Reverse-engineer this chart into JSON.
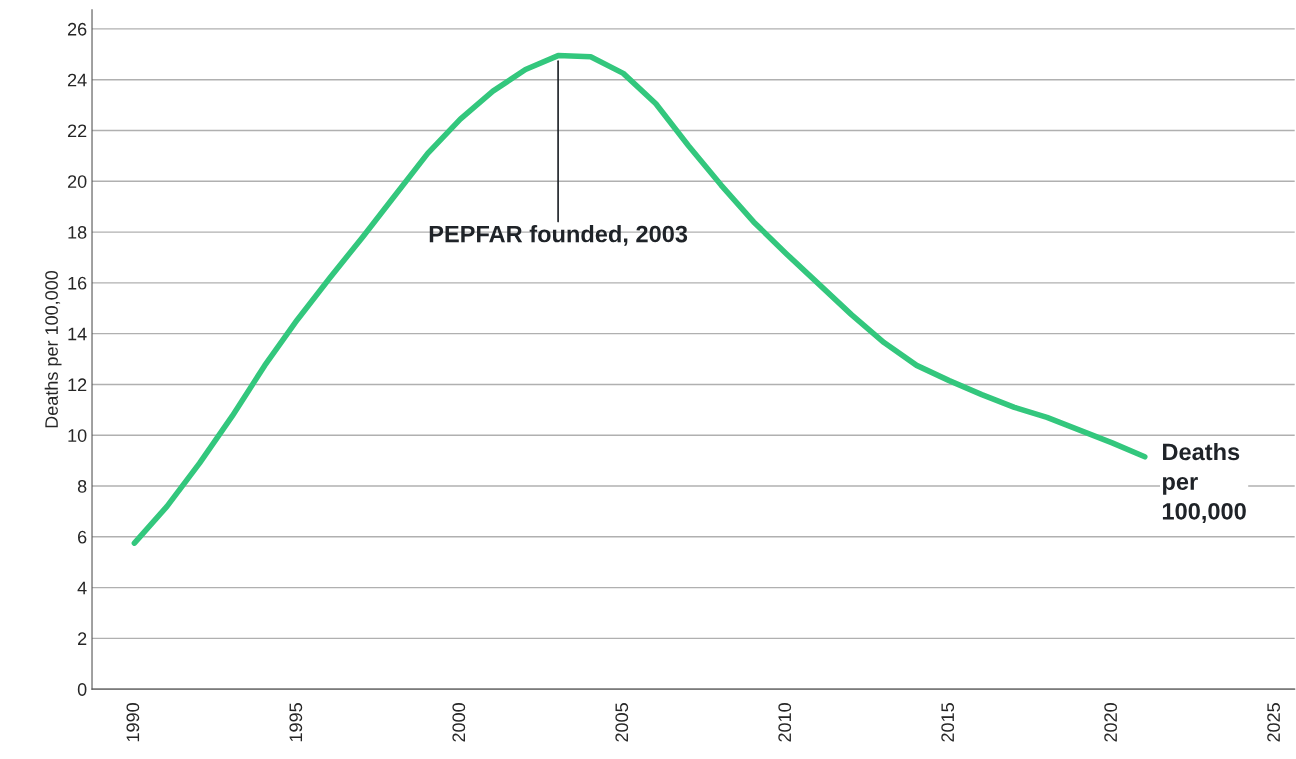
{
  "chart_data": {
    "type": "line",
    "ylabel": "Deaths per 100,000",
    "x": [
      1990,
      1991,
      1992,
      1993,
      1994,
      1995,
      1996,
      1997,
      1998,
      1999,
      2000,
      2001,
      2002,
      2003,
      2004,
      2005,
      2006,
      2007,
      2008,
      2009,
      2010,
      2011,
      2012,
      2013,
      2014,
      2015,
      2016,
      2017,
      2018,
      2019,
      2020,
      2021
    ],
    "series": [
      {
        "name": "Deaths\nper\n100,000",
        "color": "#33c77d",
        "values": [
          5.75,
          7.2,
          8.9,
          10.75,
          12.75,
          14.55,
          16.2,
          17.8,
          19.45,
          21.1,
          22.45,
          23.55,
          24.4,
          24.95,
          24.9,
          24.25,
          23.05,
          21.4,
          19.85,
          18.4,
          17.15,
          15.95,
          14.75,
          13.65,
          12.75,
          12.15,
          11.6,
          11.1,
          10.7,
          10.2,
          9.7,
          9.15
        ]
      }
    ],
    "annotations": [
      {
        "text": "PEPFAR founded, 2003",
        "x": 2003,
        "y": 24.95
      }
    ],
    "xlim": [
      1988.7,
      2025.6
    ],
    "ylim": [
      0,
      26.75
    ],
    "xticks": [
      1990,
      1995,
      2000,
      2005,
      2010,
      2015,
      2020,
      2025
    ],
    "yticks": [
      0,
      2,
      4,
      6,
      8,
      10,
      12,
      14,
      16,
      18,
      20,
      22,
      24,
      26
    ],
    "grid": "y",
    "legend": false,
    "line_style": "solid",
    "marker": "none"
  }
}
